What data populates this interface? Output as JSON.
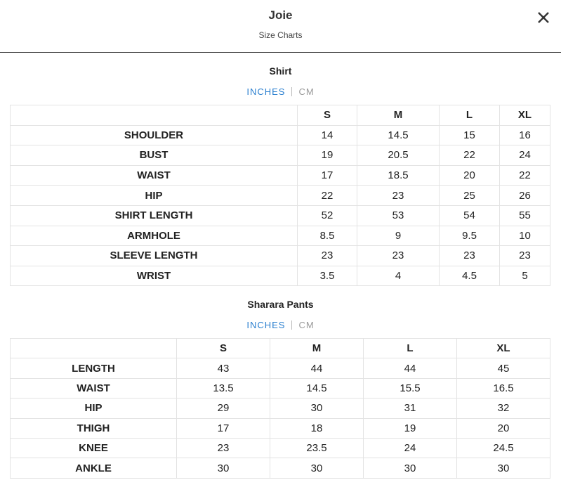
{
  "header": {
    "title": "Joie",
    "subtitle": "Size Charts"
  },
  "sections": [
    {
      "title": "Shirt",
      "tabs": [
        "INCHES",
        "CM"
      ],
      "columns": [
        "S",
        "M",
        "L",
        "XL"
      ],
      "rows": [
        {
          "label": "SHOULDER",
          "values": [
            "14",
            "14.5",
            "15",
            "16"
          ]
        },
        {
          "label": "BUST",
          "values": [
            "19",
            "20.5",
            "22",
            "24"
          ]
        },
        {
          "label": "WAIST",
          "values": [
            "17",
            "18.5",
            "20",
            "22"
          ]
        },
        {
          "label": "HIP",
          "values": [
            "22",
            "23",
            "25",
            "26"
          ]
        },
        {
          "label": "SHIRT LENGTH",
          "values": [
            "52",
            "53",
            "54",
            "55"
          ]
        },
        {
          "label": "ARMHOLE",
          "values": [
            "8.5",
            "9",
            "9.5",
            "10"
          ]
        },
        {
          "label": "SLEEVE LENGTH",
          "values": [
            "23",
            "23",
            "23",
            "23"
          ]
        },
        {
          "label": "WRIST",
          "values": [
            "3.5",
            "4",
            "4.5",
            "5"
          ]
        }
      ]
    },
    {
      "title": "Sharara Pants",
      "tabs": [
        "INCHES",
        "CM"
      ],
      "columns": [
        "S",
        "M",
        "L",
        "XL"
      ],
      "rows": [
        {
          "label": "LENGTH",
          "values": [
            "43",
            "44",
            "44",
            "45"
          ]
        },
        {
          "label": "WAIST",
          "values": [
            "13.5",
            "14.5",
            "15.5",
            "16.5"
          ]
        },
        {
          "label": "HIP",
          "values": [
            "29",
            "30",
            "31",
            "32"
          ]
        },
        {
          "label": "THIGH",
          "values": [
            "17",
            "18",
            "19",
            "20"
          ]
        },
        {
          "label": "KNEE",
          "values": [
            "23",
            "23.5",
            "24",
            "24.5"
          ]
        },
        {
          "label": "ANKLE",
          "values": [
            "30",
            "30",
            "30",
            "30"
          ]
        }
      ]
    }
  ]
}
